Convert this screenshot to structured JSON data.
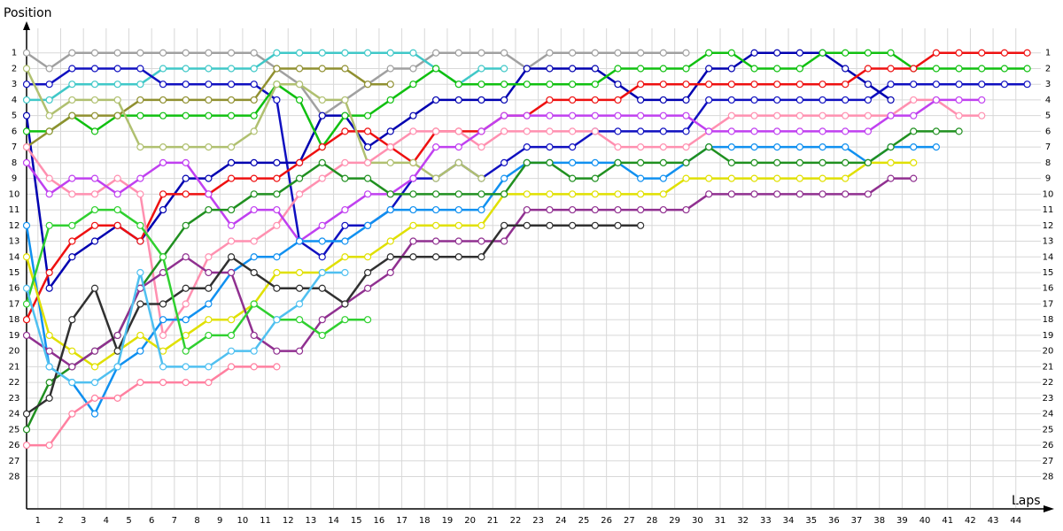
{
  "chart_data": {
    "type": "line",
    "ylabel": "Position",
    "xlabel": "Laps",
    "inverted_y": true,
    "grid": true,
    "x": [
      0,
      1,
      2,
      3,
      4,
      5,
      6,
      7,
      8,
      9,
      10,
      11,
      12,
      13,
      14,
      15,
      16,
      17,
      18,
      19,
      20,
      21,
      22,
      23,
      24,
      25,
      26,
      27,
      28,
      29,
      30,
      31,
      32,
      33,
      34,
      35,
      36,
      37,
      38,
      39,
      40,
      41,
      42,
      43,
      44
    ],
    "xlim": [
      0,
      44.6
    ],
    "xticks": [
      {
        "value": 0.5,
        "label": "1"
      },
      {
        "value": 1.5,
        "label": "2"
      },
      {
        "value": 2.5,
        "label": "3"
      },
      {
        "value": 3.5,
        "label": "4"
      },
      {
        "value": 4.5,
        "label": "5"
      },
      {
        "value": 5.5,
        "label": "6"
      },
      {
        "value": 6.5,
        "label": "7"
      },
      {
        "value": 7.5,
        "label": "8"
      },
      {
        "value": 8.5,
        "label": "9"
      },
      {
        "value": 9.5,
        "label": "10"
      },
      {
        "value": 10.5,
        "label": "11"
      },
      {
        "value": 11.5,
        "label": "12"
      },
      {
        "value": 12.5,
        "label": "13"
      },
      {
        "value": 13.5,
        "label": "14"
      },
      {
        "value": 14.5,
        "label": "15"
      },
      {
        "value": 15.5,
        "label": "16"
      },
      {
        "value": 16.5,
        "label": "17"
      },
      {
        "value": 17.5,
        "label": "18"
      },
      {
        "value": 18.5,
        "label": "19"
      },
      {
        "value": 19.5,
        "label": "20"
      },
      {
        "value": 20.5,
        "label": "21"
      },
      {
        "value": 21.5,
        "label": "22"
      },
      {
        "value": 22.5,
        "label": "23"
      },
      {
        "value": 23.5,
        "label": "24"
      },
      {
        "value": 24.5,
        "label": "25"
      },
      {
        "value": 25.5,
        "label": "26"
      },
      {
        "value": 26.5,
        "label": "27"
      },
      {
        "value": 27.5,
        "label": "28"
      },
      {
        "value": 28.5,
        "label": "29"
      },
      {
        "value": 29.5,
        "label": "30"
      },
      {
        "value": 30.5,
        "label": "31"
      },
      {
        "value": 31.5,
        "label": "32"
      },
      {
        "value": 32.5,
        "label": "33"
      },
      {
        "value": 33.5,
        "label": "34"
      },
      {
        "value": 34.5,
        "label": "35"
      },
      {
        "value": 35.5,
        "label": "36"
      },
      {
        "value": 36.5,
        "label": "37"
      },
      {
        "value": 37.5,
        "label": "38"
      },
      {
        "value": 38.5,
        "label": "39"
      },
      {
        "value": 39.5,
        "label": "40"
      },
      {
        "value": 40.5,
        "label": "41"
      },
      {
        "value": 41.5,
        "label": "42"
      },
      {
        "value": 42.5,
        "label": "43"
      },
      {
        "value": 43.5,
        "label": "44"
      }
    ],
    "ylim": [
      0,
      30
    ],
    "yticks": [
      1,
      2,
      3,
      4,
      5,
      6,
      7,
      8,
      9,
      10,
      11,
      12,
      13,
      14,
      15,
      16,
      17,
      18,
      19,
      20,
      21,
      22,
      23,
      24,
      25,
      26,
      27,
      28
    ],
    "series": [
      {
        "color": "#a0a0a0",
        "values": [
          1,
          2,
          1,
          1,
          1,
          1,
          1,
          1,
          1,
          1,
          1,
          2,
          3,
          5,
          4,
          3,
          2,
          2,
          1,
          1,
          1,
          1,
          2,
          1,
          1,
          1,
          1,
          1,
          1,
          1,
          null,
          null,
          null,
          null,
          null,
          null,
          null,
          null,
          null,
          null,
          null,
          null,
          null,
          null,
          null
        ]
      },
      {
        "color": "#40c8c8",
        "values": [
          4,
          4,
          3,
          3,
          3,
          3,
          2,
          2,
          2,
          2,
          2,
          1,
          1,
          1,
          1,
          1,
          1,
          1,
          2,
          3,
          2,
          2,
          null,
          null,
          null,
          null,
          null,
          null,
          null,
          null,
          null,
          null,
          null,
          null,
          null,
          null,
          null,
          null,
          null,
          null,
          null,
          null,
          null,
          null,
          null
        ]
      },
      {
        "color": "#1010c0",
        "values": [
          3,
          3,
          2,
          2,
          2,
          2,
          3,
          3,
          3,
          3,
          3,
          4,
          13,
          14,
          12,
          12,
          11,
          9,
          9,
          8,
          9,
          8,
          7,
          7,
          7,
          6,
          6,
          6,
          6,
          6,
          4,
          4,
          4,
          4,
          4,
          4,
          4,
          4,
          3,
          3,
          3,
          3,
          3,
          3,
          3
        ]
      },
      {
        "color": "#0000b0",
        "values": [
          5,
          16,
          14,
          13,
          12,
          13,
          11,
          9,
          9,
          8,
          8,
          8,
          8,
          5,
          5,
          7,
          6,
          5,
          4,
          4,
          4,
          4,
          2,
          2,
          2,
          2,
          3,
          4,
          4,
          4,
          2,
          2,
          1,
          1,
          1,
          1,
          2,
          3,
          4,
          null,
          null,
          null,
          null,
          null,
          null
        ]
      },
      {
        "color": "#10c010",
        "values": [
          6,
          6,
          5,
          6,
          5,
          5,
          5,
          5,
          5,
          5,
          5,
          3,
          4,
          7,
          5,
          5,
          4,
          3,
          2,
          3,
          3,
          3,
          3,
          3,
          3,
          3,
          2,
          2,
          2,
          2,
          1,
          1,
          2,
          2,
          2,
          1,
          1,
          1,
          1,
          2,
          2,
          2,
          2,
          2,
          2
        ]
      },
      {
        "color": "#ee1010",
        "values": [
          18,
          15,
          13,
          12,
          12,
          13,
          10,
          10,
          10,
          9,
          9,
          9,
          8,
          7,
          6,
          6,
          7,
          8,
          6,
          6,
          6,
          5,
          5,
          4,
          4,
          4,
          4,
          3,
          3,
          3,
          3,
          3,
          3,
          3,
          3,
          3,
          3,
          2,
          2,
          2,
          1,
          1,
          1,
          1,
          1
        ]
      },
      {
        "color": "#909030",
        "values": [
          7,
          6,
          5,
          5,
          5,
          4,
          4,
          4,
          4,
          4,
          4,
          2,
          2,
          2,
          2,
          3,
          3,
          null,
          null,
          null,
          null,
          null,
          null,
          null,
          null,
          null,
          null,
          null,
          null,
          null,
          null,
          null,
          null,
          null,
          null,
          null,
          null,
          null,
          null,
          null,
          null,
          null,
          null,
          null,
          null
        ]
      },
      {
        "color": "#b0c070",
        "values": [
          2,
          5,
          4,
          4,
          4,
          7,
          7,
          7,
          7,
          7,
          6,
          3,
          3,
          4,
          4,
          8,
          8,
          8,
          9,
          8,
          9,
          null,
          null,
          null,
          null,
          null,
          null,
          null,
          null,
          null,
          null,
          null,
          null,
          null,
          null,
          null,
          null,
          null,
          null,
          null,
          null,
          null,
          null,
          null,
          null
        ]
      },
      {
        "color": "#ff90b0",
        "values": [
          7,
          9,
          10,
          10,
          9,
          10,
          19,
          17,
          14,
          13,
          13,
          12,
          10,
          9,
          8,
          8,
          7,
          6,
          6,
          6,
          7,
          6,
          6,
          6,
          6,
          6,
          7,
          7,
          7,
          7,
          6,
          5,
          5,
          5,
          5,
          5,
          5,
          5,
          5,
          4,
          4,
          5,
          5,
          null,
          null
        ]
      },
      {
        "color": "#c040f0",
        "values": [
          8,
          10,
          9,
          9,
          10,
          9,
          8,
          8,
          10,
          12,
          11,
          11,
          13,
          12,
          11,
          10,
          10,
          9,
          7,
          7,
          6,
          5,
          5,
          5,
          5,
          5,
          5,
          5,
          5,
          5,
          6,
          6,
          6,
          6,
          6,
          6,
          6,
          6,
          5,
          5,
          4,
          4,
          4,
          null,
          null
        ]
      },
      {
        "color": "#1090f0",
        "values": [
          12,
          21,
          22,
          24,
          21,
          20,
          18,
          18,
          17,
          15,
          14,
          14,
          13,
          13,
          13,
          12,
          11,
          11,
          11,
          11,
          11,
          9,
          8,
          8,
          8,
          8,
          8,
          9,
          9,
          8,
          7,
          7,
          7,
          7,
          7,
          7,
          7,
          8,
          7,
          7,
          7,
          null,
          null,
          null,
          null
        ]
      },
      {
        "color": "#e0e000",
        "values": [
          14,
          19,
          20,
          21,
          20,
          19,
          20,
          19,
          18,
          18,
          17,
          15,
          15,
          15,
          14,
          14,
          13,
          12,
          12,
          12,
          12,
          10,
          10,
          10,
          10,
          10,
          10,
          10,
          10,
          9,
          9,
          9,
          9,
          9,
          9,
          9,
          9,
          8,
          8,
          8,
          null,
          null,
          null,
          null,
          null
        ]
      },
      {
        "color": "#209020",
        "values": [
          25,
          22,
          21,
          20,
          19,
          16,
          14,
          12,
          11,
          11,
          10,
          10,
          9,
          8,
          9,
          9,
          10,
          10,
          10,
          10,
          10,
          10,
          8,
          8,
          9,
          9,
          8,
          8,
          8,
          8,
          7,
          8,
          8,
          8,
          8,
          8,
          8,
          8,
          7,
          6,
          6,
          6,
          null,
          null,
          null
        ]
      },
      {
        "color": "#903090",
        "values": [
          19,
          20,
          21,
          20,
          19,
          16,
          15,
          14,
          15,
          15,
          19,
          20,
          20,
          18,
          17,
          16,
          15,
          13,
          13,
          13,
          13,
          13,
          11,
          11,
          11,
          11,
          11,
          11,
          11,
          11,
          10,
          10,
          10,
          10,
          10,
          10,
          10,
          10,
          9,
          9,
          null,
          null,
          null,
          null,
          null
        ]
      },
      {
        "color": "#303030",
        "values": [
          24,
          23,
          18,
          16,
          20,
          17,
          17,
          16,
          16,
          14,
          15,
          16,
          16,
          16,
          17,
          15,
          14,
          14,
          14,
          14,
          14,
          12,
          12,
          12,
          12,
          12,
          12,
          12,
          null,
          null,
          null,
          null,
          null,
          null,
          null,
          null,
          null,
          null,
          null,
          null,
          null,
          null,
          null,
          null,
          null
        ]
      },
      {
        "color": "#30d030",
        "values": [
          17,
          12,
          12,
          11,
          11,
          12,
          14,
          20,
          19,
          19,
          17,
          18,
          18,
          19,
          18,
          18,
          null,
          null,
          null,
          null,
          null,
          null,
          null,
          null,
          null,
          null,
          null,
          null,
          null,
          null,
          null,
          null,
          null,
          null,
          null,
          null,
          null,
          null,
          null,
          null,
          null,
          null,
          null,
          null,
          null
        ]
      },
      {
        "color": "#50c0f0",
        "values": [
          16,
          21,
          22,
          22,
          21,
          15,
          21,
          21,
          21,
          20,
          20,
          18,
          17,
          15,
          15,
          null,
          null,
          null,
          null,
          null,
          null,
          null,
          null,
          null,
          null,
          null,
          null,
          null,
          null,
          null,
          null,
          null,
          null,
          null,
          null,
          null,
          null,
          null,
          null,
          null,
          null,
          null,
          null,
          null,
          null
        ]
      },
      {
        "color": "#ff80a0",
        "values": [
          26,
          26,
          24,
          23,
          23,
          22,
          22,
          22,
          22,
          21,
          21,
          21,
          null,
          null,
          null,
          null,
          null,
          null,
          null,
          null,
          null,
          null,
          null,
          null,
          null,
          null,
          null,
          null,
          null,
          null,
          null,
          null,
          null,
          null,
          null,
          null,
          null,
          null,
          null,
          null,
          null,
          null,
          null,
          null,
          null
        ]
      }
    ]
  }
}
